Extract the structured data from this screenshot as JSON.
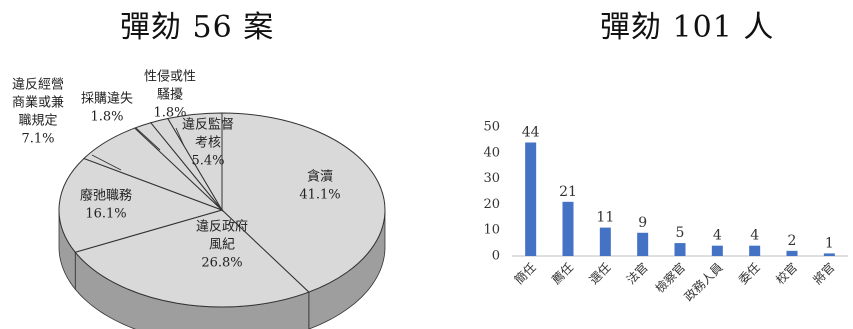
{
  "chart_data": [
    {
      "type": "pie",
      "title": "彈劾 56 案",
      "slices": [
        {
          "label": "貪瀆",
          "value": 41.1,
          "value_text": "41.1%"
        },
        {
          "label": "違反政府風紀",
          "label_lines": [
            "違反政府",
            "風紀"
          ],
          "value": 26.8,
          "value_text": "26.8%"
        },
        {
          "label": "廢弛職務",
          "label_lines": [
            "廢弛職務"
          ],
          "value": 16.1,
          "value_text": "16.1%"
        },
        {
          "label": "違反經營商業或兼職規定",
          "label_lines": [
            "違反經營",
            "商業或兼",
            "職規定"
          ],
          "value": 7.1,
          "value_text": "7.1%"
        },
        {
          "label": "採購違失",
          "label_lines": [
            "採購違失"
          ],
          "value": 1.8,
          "value_text": "1.8%"
        },
        {
          "label": "性侵或性騷擾",
          "label_lines": [
            "性侵或性",
            "騷擾"
          ],
          "value": 1.8,
          "value_text": "1.8%"
        },
        {
          "label": "違反監督考核",
          "label_lines": [
            "違反監督",
            "考核"
          ],
          "value": 5.4,
          "value_text": "5.4%"
        }
      ]
    },
    {
      "type": "bar",
      "title": "彈劾 101 人",
      "categories": [
        "簡任",
        "薦任",
        "選任",
        "法官",
        "檢察官",
        "政務人員",
        "委任",
        "校官",
        "將官"
      ],
      "values": [
        44,
        21,
        11,
        9,
        5,
        4,
        4,
        2,
        1
      ],
      "ylim": [
        0,
        50
      ],
      "yticks": [
        "0",
        "10",
        "20",
        "30",
        "40",
        "50"
      ],
      "grid": false,
      "bar_color": "#4472C4"
    }
  ]
}
